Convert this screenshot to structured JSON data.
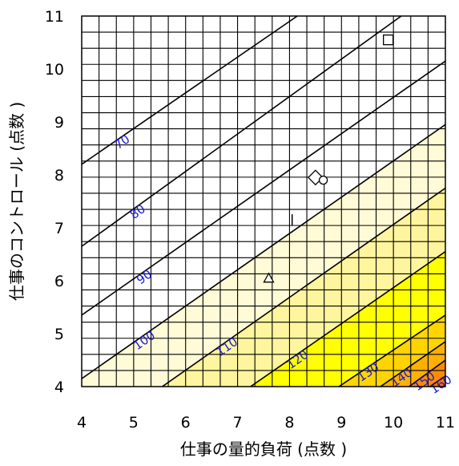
{
  "chart_data": {
    "type": "contour",
    "xlabel": "仕事の量的負荷 (点数 )",
    "ylabel": "仕事のコントロール (点数 )",
    "xlim": [
      4,
      11
    ],
    "ylim": [
      4,
      11
    ],
    "x_ticks": [
      "4",
      "5",
      "6",
      "7",
      "8",
      "9",
      "10",
      "11"
    ],
    "y_ticks": [
      "4",
      "5",
      "6",
      "7",
      "8",
      "9",
      "10",
      "11"
    ],
    "grid": true,
    "contours": [
      {
        "label": "70",
        "points": [
          [
            4,
            8.2
          ],
          [
            8.15,
            11
          ]
        ]
      },
      {
        "label": "80",
        "points": [
          [
            4,
            6.65
          ],
          [
            10.15,
            11
          ]
        ]
      },
      {
        "label": "90",
        "points": [
          [
            4,
            5.35
          ],
          [
            11,
            10.15
          ]
        ]
      },
      {
        "label": "100",
        "points": [
          [
            4,
            4.15
          ],
          [
            11,
            8.95
          ]
        ]
      },
      {
        "label": "110",
        "points": [
          [
            5.55,
            4
          ],
          [
            11,
            7.75
          ]
        ]
      },
      {
        "label": "120",
        "points": [
          [
            7.25,
            4
          ],
          [
            11,
            6.55
          ]
        ]
      },
      {
        "label": "130",
        "points": [
          [
            8.95,
            4
          ],
          [
            11,
            5.35
          ]
        ]
      },
      {
        "label": "140",
        "points": [
          [
            9.75,
            4
          ],
          [
            11,
            4.85
          ]
        ]
      },
      {
        "label": "150",
        "points": [
          [
            10.3,
            4
          ],
          [
            11,
            4.5
          ]
        ]
      },
      {
        "label": "160",
        "points": [
          [
            10.7,
            4
          ],
          [
            11,
            4.2
          ]
        ]
      }
    ],
    "fill_bands": [
      {
        "from": "100",
        "to": "110",
        "color": "#fffbd6"
      },
      {
        "from": "110",
        "to": "120",
        "color": "#fff59e"
      },
      {
        "from": "120",
        "to": "130",
        "color": "#ffff00"
      },
      {
        "from": "130",
        "to": "140",
        "color": "#ffd400"
      },
      {
        "from": "140",
        "to": "150",
        "color": "#ffb000"
      },
      {
        "from": "150",
        "to": "160",
        "color": "#ff8c00"
      }
    ],
    "markers": [
      {
        "shape": "square",
        "x": 9.9,
        "y": 10.55
      },
      {
        "shape": "diamond",
        "x": 8.5,
        "y": 7.95
      },
      {
        "shape": "circle",
        "x": 8.65,
        "y": 7.9
      },
      {
        "shape": "triangle",
        "x": 7.6,
        "y": 6.05
      },
      {
        "shape": "tick",
        "x": 8.05,
        "y": 7.15
      }
    ]
  }
}
